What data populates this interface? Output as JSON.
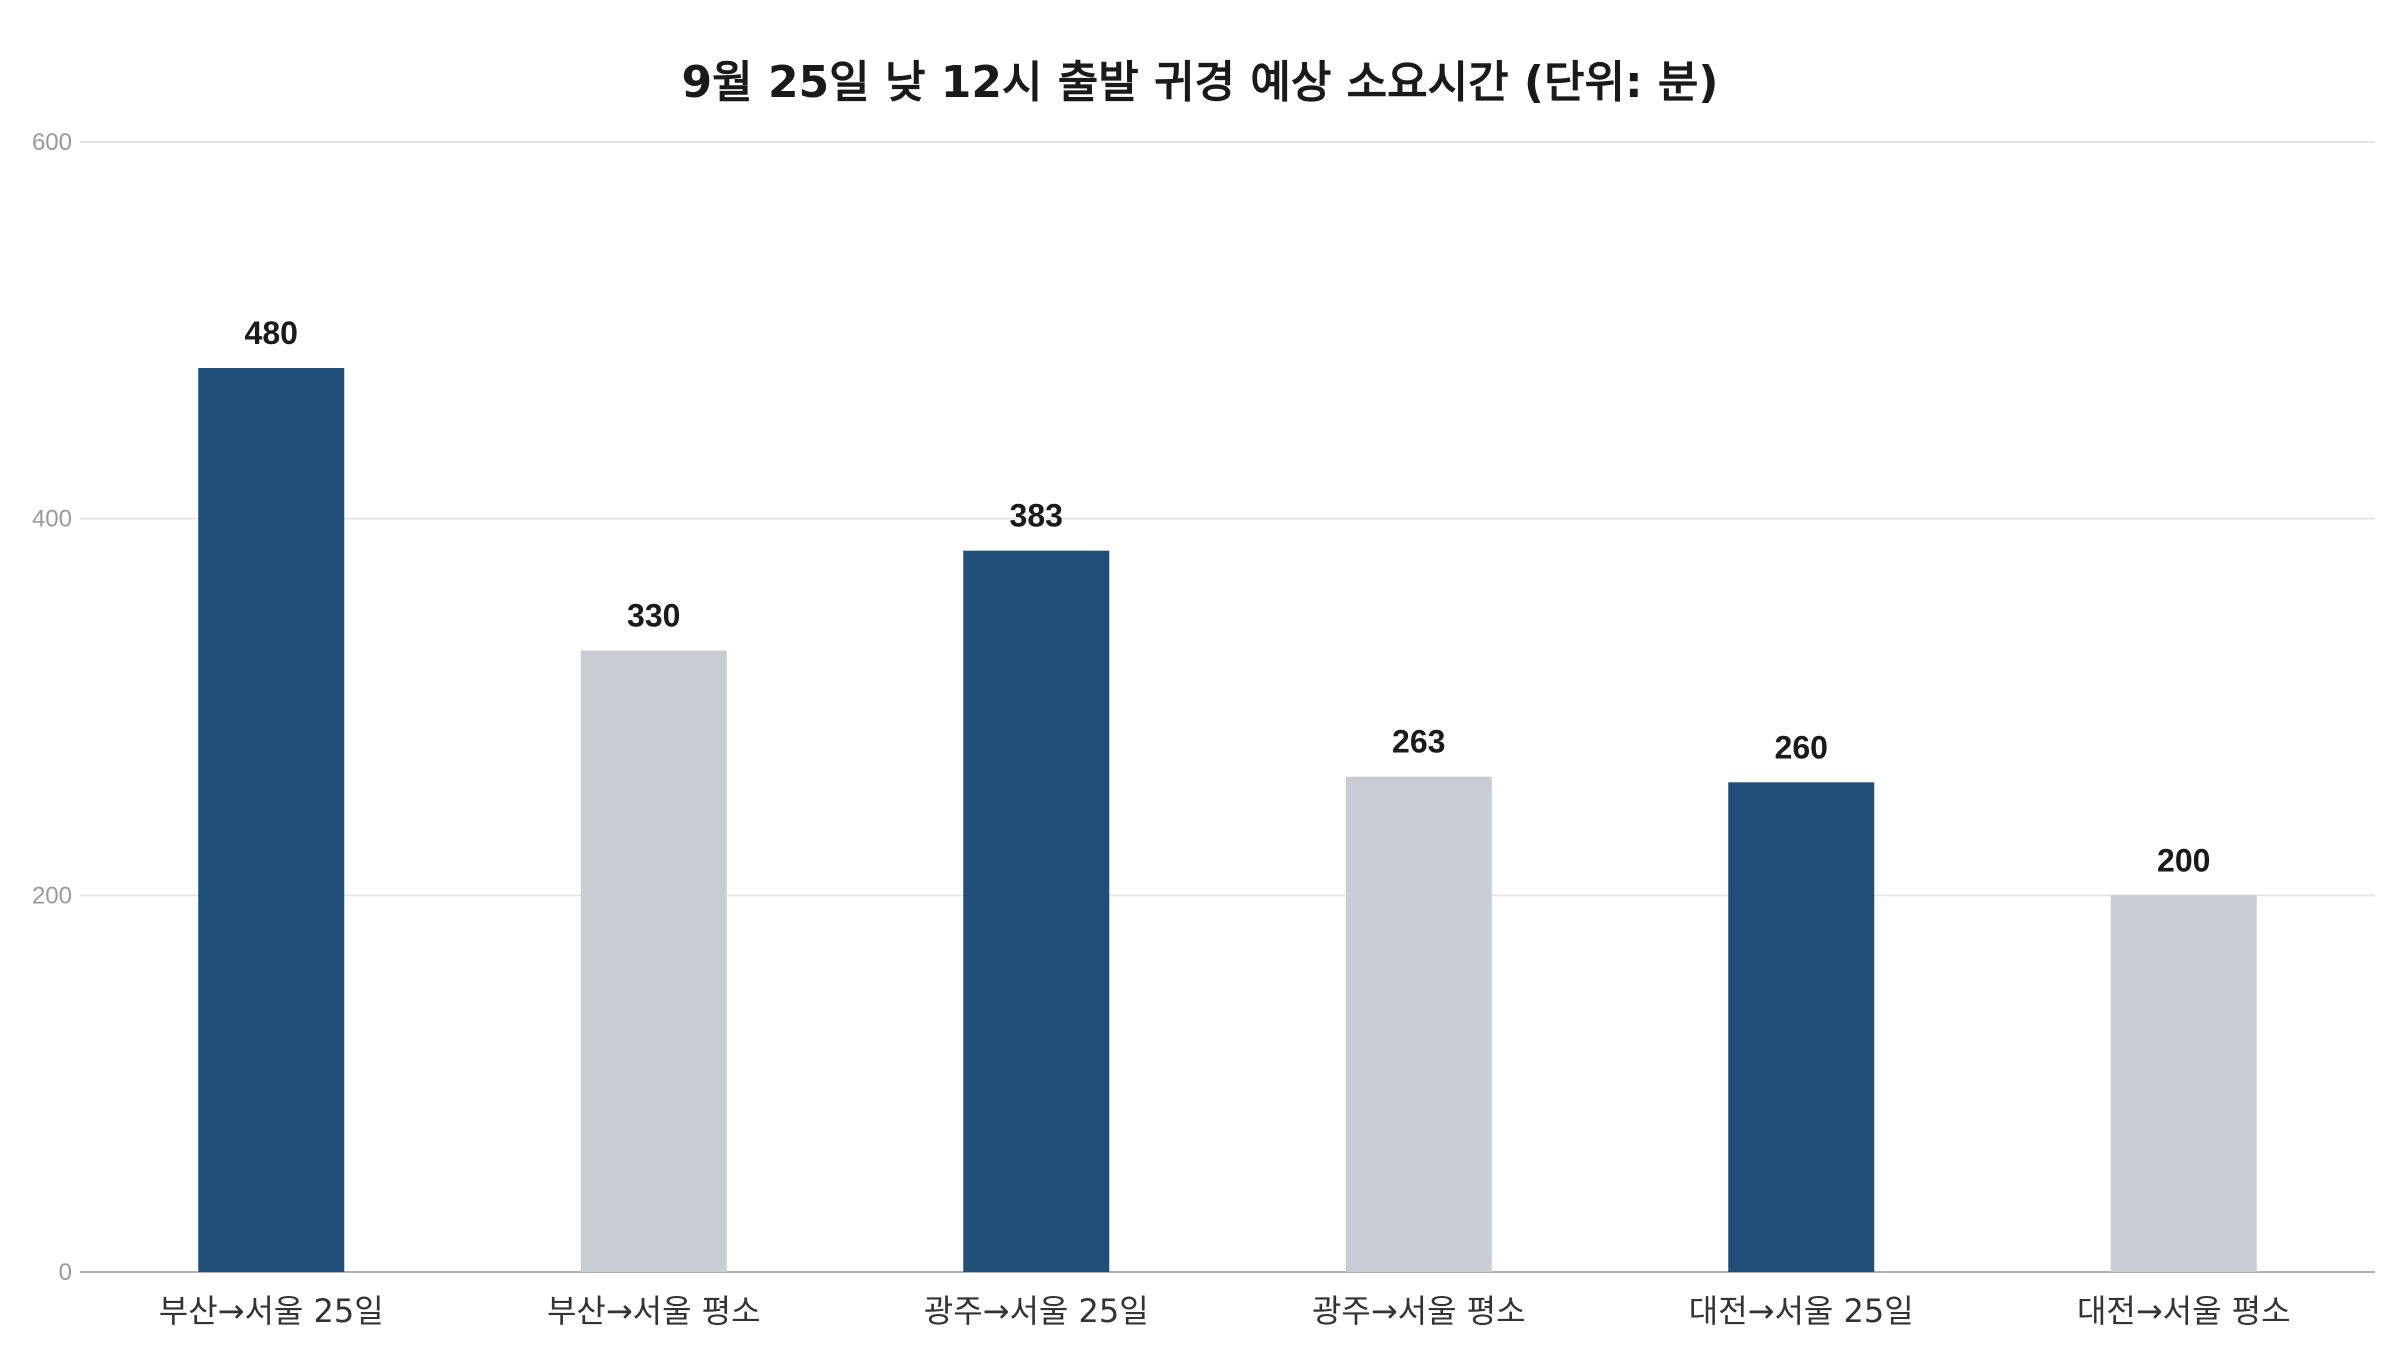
{
  "chart_data": {
    "type": "bar",
    "title": "9월 25일 낮 12시 출발 귀경 예상 소요시간 (단위: 분)",
    "xlabel": "",
    "ylabel": "",
    "categories": [
      "부산→서울 25일",
      "부산→서울 평소",
      "광주→서울 25일",
      "광주→서울 평소",
      "대전→서울 25일",
      "대전→서울 평소"
    ],
    "values": [
      480,
      330,
      383,
      263,
      260,
      200
    ],
    "value_labels": [
      "480",
      "330",
      "383",
      "263",
      "260",
      "200"
    ],
    "ylim": [
      0,
      600
    ],
    "yticks": [
      0,
      200,
      400,
      600
    ],
    "ytick_labels": [
      "0",
      "200",
      "400",
      "600"
    ],
    "grid": true,
    "legend": "none",
    "bar_colors": [
      "#1f4e79",
      "#c8cdd5",
      "#1f4e79",
      "#c8cdd5",
      "#1f4e79",
      "#c8cdd5"
    ],
    "colors": {
      "highlight": "#1f4e79",
      "normal": "#c8cdd5",
      "grid": "#e6e6e6",
      "axis": "#b0b0b0"
    }
  }
}
